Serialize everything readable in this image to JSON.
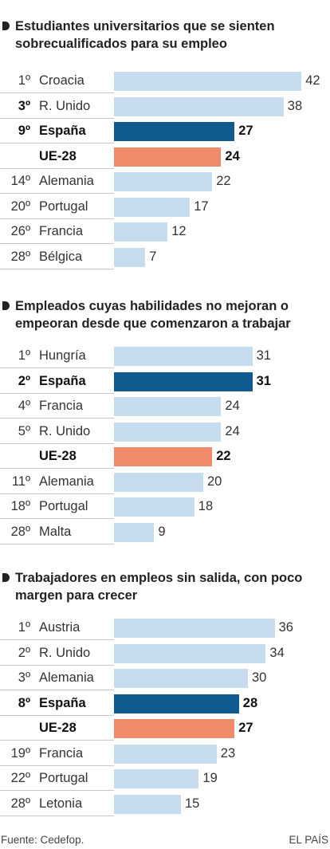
{
  "colors": {
    "default": "#c7dcee",
    "spain": "#0f5a8f",
    "eu": "#ef8a6b"
  },
  "chart_data": [
    {
      "type": "bar",
      "title": "Estudiantes universitarios que se sienten sobrecualificados para su empleo",
      "xlim": [
        0,
        42
      ],
      "rows": [
        {
          "rank": "1º",
          "rank_bold": false,
          "label": "Croacia",
          "value": 42,
          "style": "default",
          "bold": false
        },
        {
          "rank": "3º",
          "rank_bold": true,
          "label": "R. Unido",
          "value": 38,
          "style": "default",
          "bold": false
        },
        {
          "rank": "9º",
          "rank_bold": false,
          "label": "España",
          "value": 27,
          "style": "spain",
          "bold": true
        },
        {
          "rank": "",
          "rank_bold": false,
          "label": "UE-28",
          "value": 24,
          "style": "eu",
          "bold": true
        },
        {
          "rank": "14º",
          "rank_bold": false,
          "label": "Alemania",
          "value": 22,
          "style": "default",
          "bold": false
        },
        {
          "rank": "20º",
          "rank_bold": false,
          "label": "Portugal",
          "value": 17,
          "style": "default",
          "bold": false
        },
        {
          "rank": "26º",
          "rank_bold": false,
          "label": "Francia",
          "value": 12,
          "style": "default",
          "bold": false
        },
        {
          "rank": "28º",
          "rank_bold": false,
          "label": "Bélgica",
          "value": 7,
          "style": "default",
          "bold": false
        }
      ]
    },
    {
      "type": "bar",
      "title": "Empleados cuyas habilidades no mejoran o empeoran desde que comenzaron a trabajar",
      "xlim": [
        0,
        42
      ],
      "rows": [
        {
          "rank": "1º",
          "rank_bold": false,
          "label": "Hungría",
          "value": 31,
          "style": "default",
          "bold": false
        },
        {
          "rank": "2º",
          "rank_bold": false,
          "label": "España",
          "value": 31,
          "style": "spain",
          "bold": true
        },
        {
          "rank": "4º",
          "rank_bold": false,
          "label": "Francia",
          "value": 24,
          "style": "default",
          "bold": false
        },
        {
          "rank": "5º",
          "rank_bold": false,
          "label": "R. Unido",
          "value": 24,
          "style": "default",
          "bold": false
        },
        {
          "rank": "",
          "rank_bold": false,
          "label": "UE-28",
          "value": 22,
          "style": "eu",
          "bold": true
        },
        {
          "rank": "11º",
          "rank_bold": false,
          "label": "Alemania",
          "value": 20,
          "style": "default",
          "bold": false
        },
        {
          "rank": "18º",
          "rank_bold": false,
          "label": "Portugal",
          "value": 18,
          "style": "default",
          "bold": false
        },
        {
          "rank": "28º",
          "rank_bold": false,
          "label": "Malta",
          "value": 9,
          "style": "default",
          "bold": false
        }
      ]
    },
    {
      "type": "bar",
      "title": "Trabajadores en empleos sin salida, con poco margen para crecer",
      "xlim": [
        0,
        42
      ],
      "rows": [
        {
          "rank": "1º",
          "rank_bold": false,
          "label": "Austria",
          "value": 36,
          "style": "default",
          "bold": false
        },
        {
          "rank": "2º",
          "rank_bold": false,
          "label": "R. Unido",
          "value": 34,
          "style": "default",
          "bold": false
        },
        {
          "rank": "3º",
          "rank_bold": false,
          "label": "Alemania",
          "value": 30,
          "style": "default",
          "bold": false
        },
        {
          "rank": "8º",
          "rank_bold": false,
          "label": "España",
          "value": 28,
          "style": "spain",
          "bold": true
        },
        {
          "rank": "",
          "rank_bold": false,
          "label": "UE-28",
          "value": 27,
          "style": "eu",
          "bold": true
        },
        {
          "rank": "19º",
          "rank_bold": false,
          "label": "Francia",
          "value": 23,
          "style": "default",
          "bold": false
        },
        {
          "rank": "22º",
          "rank_bold": false,
          "label": "Portugal",
          "value": 19,
          "style": "default",
          "bold": false
        },
        {
          "rank": "28º",
          "rank_bold": false,
          "label": "Letonia",
          "value": 15,
          "style": "default",
          "bold": false
        }
      ]
    }
  ],
  "footer": {
    "source": "Fuente: Cedefop.",
    "brand": "EL PAÍS"
  }
}
